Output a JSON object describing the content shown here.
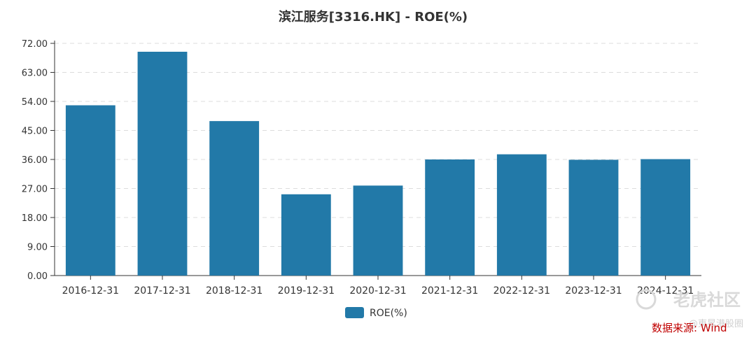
{
  "chart_data": {
    "type": "bar",
    "title": "滨江服务[3316.HK] - ROE(%)",
    "categories": [
      "2016-12-31",
      "2017-12-31",
      "2018-12-31",
      "2019-12-31",
      "2020-12-31",
      "2021-12-31",
      "2022-12-31",
      "2023-12-31",
      "2024-12-31"
    ],
    "series": [
      {
        "name": "ROE(%)",
        "values": [
          52.8,
          69.4,
          47.9,
          25.2,
          27.9,
          36.0,
          37.6,
          35.9,
          36.1
        ],
        "color": "#2279a8"
      }
    ],
    "yticks": [
      "0.00",
      "9.00",
      "18.00",
      "27.00",
      "36.00",
      "45.00",
      "54.00",
      "63.00",
      "72.00"
    ],
    "ylim": [
      0,
      72
    ],
    "grid": true,
    "legend_position": "bottom-center",
    "xlabel": "",
    "ylabel": ""
  },
  "source_note": "数据来源: Wind",
  "watermark": {
    "main": "老虎社区",
    "sub": "@東昇港股圈"
  }
}
